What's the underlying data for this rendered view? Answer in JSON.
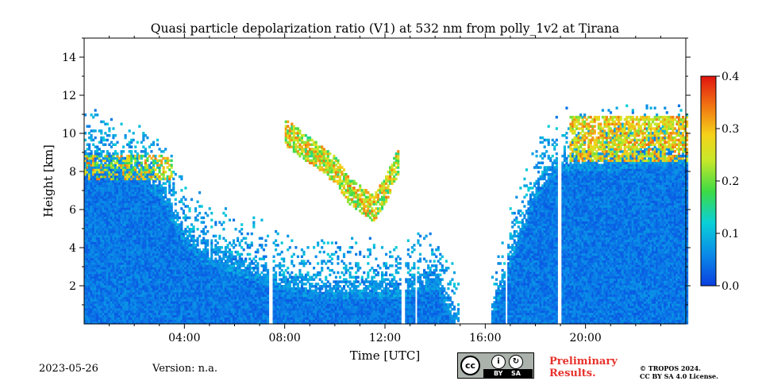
{
  "chart_data": {
    "type": "heatmap",
    "title": "Quasi particle depolarization ratio (V1) at 532 nm from polly_1v2 at Tirana",
    "xlabel": "Time [UTC]",
    "ylabel": "Height [km]",
    "x_ticks": [
      "04:00",
      "08:00",
      "12:00",
      "16:00",
      "20:00"
    ],
    "x_tick_hours": [
      4,
      8,
      12,
      16,
      20
    ],
    "xlim_hours": [
      0,
      24
    ],
    "y_ticks": [
      2,
      4,
      6,
      8,
      10,
      12,
      14
    ],
    "ylim": [
      0,
      15
    ],
    "colorbar": {
      "ticks": [
        0.0,
        0.1,
        0.2,
        0.3,
        0.4
      ],
      "tick_labels": [
        "0.0",
        "0.1",
        "0.2",
        "0.3",
        "0.4"
      ],
      "range": [
        0.0,
        0.4
      ],
      "colormap": "jet"
    },
    "features": {
      "aerosol_layer_top_km": {
        "hours": [
          0,
          1,
          2,
          3,
          4,
          5,
          6,
          7,
          8,
          9,
          10,
          11,
          12,
          13,
          14,
          15,
          16,
          17,
          18,
          19,
          20,
          21,
          22,
          23,
          24
        ],
        "top": [
          9.0,
          8.8,
          8.6,
          7.5,
          5.0,
          4.0,
          3.6,
          3.1,
          2.5,
          2.3,
          2.2,
          2.2,
          2.2,
          2.4,
          2.8,
          0,
          0,
          4.0,
          7.5,
          9.0,
          9.0,
          9.0,
          9.1,
          9.2,
          9.2
        ]
      },
      "depolarizing_plume": {
        "hours": [
          8.0,
          9.0,
          10.0,
          10.5,
          11.0,
          11.5,
          12.0,
          12.5
        ],
        "center_km": [
          10.0,
          9.0,
          8.0,
          7.0,
          6.5,
          6.0,
          7.0,
          8.5
        ],
        "value": 0.3
      },
      "cloud_layer_right": {
        "hours": [
          19.3,
          24
        ],
        "km": [
          8.5,
          10.8
        ],
        "value": 0.33
      },
      "data_gap_hours": [
        [
          14.9,
          16.2
        ]
      ],
      "dropout_hours": [
        7.4,
        12.7,
        13.2,
        16.8,
        18.9
      ]
    }
  },
  "footer": {
    "date": "2023-05-26",
    "version": "Version: n.a.",
    "prelim_line1": "Preliminary",
    "prelim_line2": "Results.",
    "copyright1": "© TROPOS 2024.",
    "copyright2": "CC BY SA 4.0 License.",
    "cc_badge": {
      "main": "cc",
      "by": "BY",
      "sa": "SA"
    }
  },
  "colors": {
    "preliminary": "#e8302a",
    "badge_bg": "#aab2ab"
  }
}
